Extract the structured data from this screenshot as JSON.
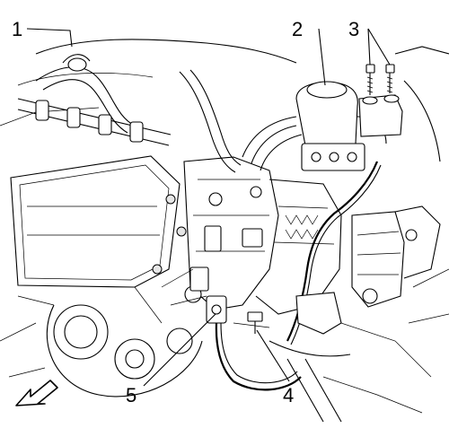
{
  "callouts": [
    {
      "id": "1",
      "text": "1"
    },
    {
      "id": "2",
      "text": "2"
    },
    {
      "id": "3",
      "text": "3"
    },
    {
      "id": "4",
      "text": "4"
    },
    {
      "id": "5",
      "text": "5"
    }
  ],
  "orientation_arrow": "front-direction-arrow-icon"
}
